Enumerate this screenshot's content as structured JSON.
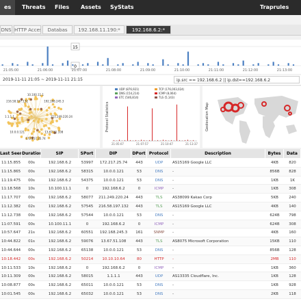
{
  "nav": {
    "items": [
      "es",
      "Threats",
      "Files",
      "Assets",
      "SyStats"
    ],
    "right": "Traprules"
  },
  "tabs": [
    "DNS",
    "HTTP Access",
    "Databas",
    "192.168.11.190:*",
    "192.168.6.2:*"
  ],
  "timeline": {
    "ylim": [
      0,
      15
    ],
    "yticks": [
      0,
      15
    ],
    "values": [
      1,
      0,
      2,
      1,
      0,
      3,
      1,
      0,
      2,
      15,
      1,
      0,
      2,
      4,
      1,
      0,
      1,
      2,
      0,
      3,
      1,
      6,
      0,
      1,
      2,
      0,
      1,
      3,
      0,
      2,
      1,
      0,
      5,
      1,
      0,
      2,
      1,
      11,
      0,
      1,
      2,
      1,
      0,
      3,
      1,
      0,
      2,
      1,
      4,
      0,
      1,
      2,
      0,
      1,
      3,
      1,
      0,
      2,
      1,
      0
    ],
    "xlabels": [
      "21:05:00",
      "21:06:00",
      "21:07:00",
      "21:08:00",
      "21:09:00",
      "21:10:00",
      "21:11:00",
      "21:12:00",
      "21:13:00"
    ]
  },
  "filter": {
    "range": "2019-11-11 21:05 ~ 2019-11-11 21:15",
    "query": "ip.src == 192.168.6.2 || ip.dst==192.168.6.2"
  },
  "graph": {
    "labels": [
      "211.249.220.24",
      "13.67.51.108",
      "172.217.25.74",
      "10.0.0.121",
      "1.1.1.1",
      "216.58.197.132",
      "10.100.11.1",
      "192.168.245.3"
    ]
  },
  "protocol_chart": {
    "ylabel": "Protocol Statistics",
    "legend": [
      "UDP (876,921)",
      "TCP (176,003,024)",
      "DNS (154,214)",
      "ICMP (8,064)",
      "ETC (546,814)",
      "TLS (5,143)"
    ],
    "xlabels": [
      "21:05:07",
      "21:07:57",
      "21:10:47",
      "21:13:37"
    ],
    "ylim": [
      0,
      100
    ],
    "values": [
      2,
      1,
      3,
      1,
      2,
      90,
      2,
      1,
      2,
      1,
      3,
      2,
      1,
      2,
      85,
      1,
      2,
      1,
      3,
      2,
      1,
      2,
      1,
      95,
      2,
      1,
      2,
      3,
      1,
      2
    ]
  },
  "map": {
    "label": "Geolocation Map"
  },
  "table": {
    "headers": [
      "Last Seen",
      "Duration",
      "SIP",
      "SPort",
      "DIP",
      "DPort",
      "Protocol",
      "Description",
      "Bytes",
      "Data"
    ],
    "rows": [
      [
        "11:15.855",
        "00s",
        "192.168.6.2",
        "53997",
        "172.217.25.74",
        "443",
        "UDP",
        "AS15169 Google LLC",
        "4KB",
        "820"
      ],
      [
        "11:15.865",
        "00s",
        "192.168.6.2",
        "58315",
        "10.0.0.121",
        "53",
        "DNS",
        "-",
        "856B",
        "828"
      ],
      [
        "11:19.475",
        "00s",
        "192.168.6.2",
        "54375",
        "10.0.0.121",
        "53",
        "DNS",
        "-",
        "1KB",
        "1K"
      ],
      [
        "11:18.568",
        "10s",
        "10.100.11.1",
        "0",
        "192.168.6.2",
        "0",
        "ICMP",
        "-",
        "1KB",
        "308"
      ],
      [
        "11:17.707",
        "00s",
        "192.168.6.2",
        "58077",
        "211.249.220.24",
        "443",
        "TLS",
        "AS38099 Kakao Corp",
        "5KB",
        "240"
      ],
      [
        "11:12.382",
        "02s",
        "192.168.6.2",
        "57545",
        "216.58.197.132",
        "443",
        "TLS",
        "AS15169 Google LLC",
        "4KB",
        "140"
      ],
      [
        "11:12.738",
        "00s",
        "192.168.6.2",
        "57544",
        "10.0.0.121",
        "53",
        "DNS",
        "-",
        "624B",
        "798"
      ],
      [
        "11:07.591",
        "00s",
        "10.100.11.1",
        "0",
        "192.168.6.2",
        "0",
        "ICMP",
        "-",
        "624B",
        "308"
      ],
      [
        "10:57.647",
        "21s",
        "192.168.6.2",
        "60551",
        "192.168.245.3",
        "161",
        "SNMP",
        "-",
        "4KB",
        "160"
      ],
      [
        "10:44.822",
        "01s",
        "192.168.6.2",
        "59076",
        "13.67.51.108",
        "443",
        "TLS",
        "AS8075 Microsoft Corporation",
        "15KB",
        "110"
      ],
      [
        "10:44.644",
        "00s",
        "192.168.6.2",
        "65138",
        "10.0.0.121",
        "53",
        "DNS",
        "-",
        "856B",
        "128"
      ],
      [
        "10:18.442",
        "00s",
        "192.168.6.2",
        "50214",
        "10.10.10.64",
        "80",
        "HTTP",
        "-",
        "2MB",
        "110"
      ],
      [
        "10:11.533",
        "10s",
        "192.168.6.2",
        "0",
        "192.168.6.2",
        "0",
        "ICMP",
        "-",
        "1KB",
        "360"
      ],
      [
        "10:11.309",
        "00s",
        "192.168.6.2",
        "58015",
        "1.1.1.1",
        "443",
        "UDP",
        "AS13335 Cloudflare, Inc.",
        "1KB",
        "128"
      ],
      [
        "10:08.877",
        "00s",
        "192.168.6.2",
        "65011",
        "10.0.0.121",
        "53",
        "DNS",
        "-",
        "1KB",
        "928"
      ],
      [
        "10:01.545",
        "00s",
        "192.168.6.2",
        "65032",
        "10.0.0.121",
        "53",
        "DNS",
        "-",
        "2KB",
        "118"
      ]
    ]
  }
}
